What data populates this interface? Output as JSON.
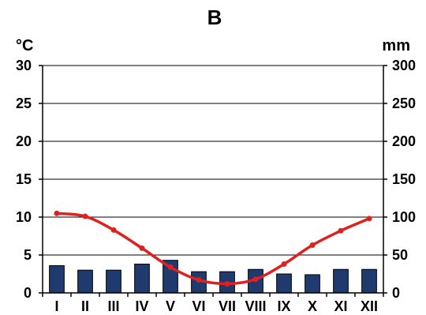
{
  "chart_data": {
    "type": "bar",
    "title": "B",
    "left_axis_label": "°C",
    "right_axis_label": "mm",
    "left_axis": {
      "ylim": [
        0,
        30
      ],
      "ticks": [
        "0",
        "5",
        "10",
        "15",
        "20",
        "25",
        "30"
      ]
    },
    "right_axis": {
      "ylim": [
        0,
        300
      ],
      "ticks": [
        "0",
        "50",
        "100",
        "150",
        "200",
        "250",
        "300"
      ]
    },
    "categories": [
      "I",
      "II",
      "III",
      "IV",
      "V",
      "VI",
      "VII",
      "VIII",
      "IX",
      "X",
      "XI",
      "XII"
    ],
    "grid": true,
    "series": [
      {
        "type": "bar",
        "axis": "right",
        "color": "#1f3a6e",
        "values": [
          36,
          30,
          30,
          38,
          43,
          28,
          28,
          31,
          25,
          24,
          31,
          31
        ]
      },
      {
        "type": "line",
        "axis": "left",
        "color": "#e02020",
        "values": [
          10.5,
          10.1,
          8.3,
          5.9,
          3.4,
          1.7,
          1.2,
          1.8,
          3.8,
          6.3,
          8.2,
          9.8
        ]
      }
    ]
  }
}
